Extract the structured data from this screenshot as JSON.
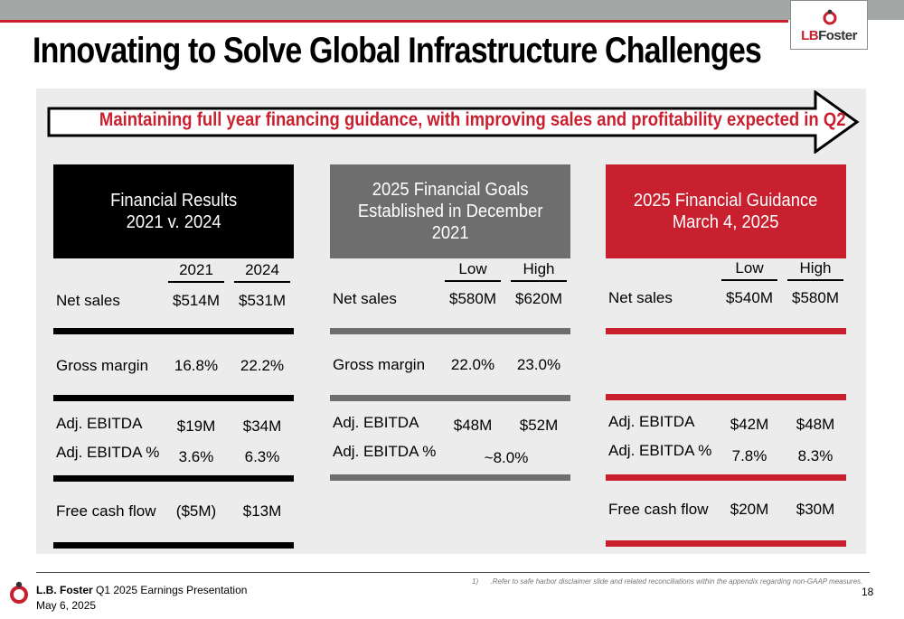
{
  "header": {
    "title": "Innovating to Solve Global Infrastructure Challenges",
    "logo_prefix": "LB",
    "logo_suffix": "Foster",
    "accent_color": "#c8202f"
  },
  "banner": {
    "text": "Maintaining full year financing guidance, with improving sales and profitability expected in Q2"
  },
  "panels": {
    "results": {
      "title_line1": "Financial Results",
      "title_line2": "2021 v. 2024",
      "col1": "2021",
      "col2": "2024",
      "rows": [
        {
          "label": "Net sales",
          "v1": "$514M",
          "v2": "$531M"
        },
        {
          "label": "Gross margin",
          "v1": "16.8%",
          "v2": "22.2%"
        },
        {
          "label": "Adj. EBITDA",
          "v1": "$19M",
          "v2": "$34M"
        },
        {
          "label": "Adj. EBITDA %",
          "v1": "3.6%",
          "v2": "6.3%"
        },
        {
          "label": "Free cash flow",
          "v1": "($5M)",
          "v2": "$13M"
        }
      ]
    },
    "goals": {
      "title_line1": "2025 Financial Goals",
      "title_line2": "Established in December",
      "title_line3": "2021",
      "col1": "Low",
      "col2": "High",
      "rows": [
        {
          "label": "Net sales",
          "v1": "$580M",
          "v2": "$620M"
        },
        {
          "label": "Gross margin",
          "v1": "22.0%",
          "v2": "23.0%"
        },
        {
          "label": "Adj. EBITDA",
          "v1": "$48M",
          "v2": "$52M"
        },
        {
          "label": "Adj. EBITDA %",
          "v": "~8.0%"
        }
      ]
    },
    "guidance": {
      "title_line1": "2025 Financial Guidance",
      "title_line2": "March 4, 2025",
      "col1": "Low",
      "col2": "High",
      "rows": [
        {
          "label": "Net sales",
          "v1": "$540M",
          "v2": "$580M"
        },
        {
          "label": "Adj. EBITDA",
          "v1": "$42M",
          "v2": "$48M"
        },
        {
          "label": "Adj. EBITDA %",
          "v1": "7.8%",
          "v2": "8.3%"
        },
        {
          "label": "Free cash flow",
          "v1": "$20M",
          "v2": "$30M"
        }
      ]
    }
  },
  "footer": {
    "company": "L.B. Foster",
    "presentation": " Q1 2025 Earnings Presentation",
    "date": "May 6, 2025",
    "note_number": "1)",
    "note": ".Refer to safe harbor disclaimer slide and related reconciliations within the appendix regarding non-GAAP measures.",
    "page": "18"
  }
}
